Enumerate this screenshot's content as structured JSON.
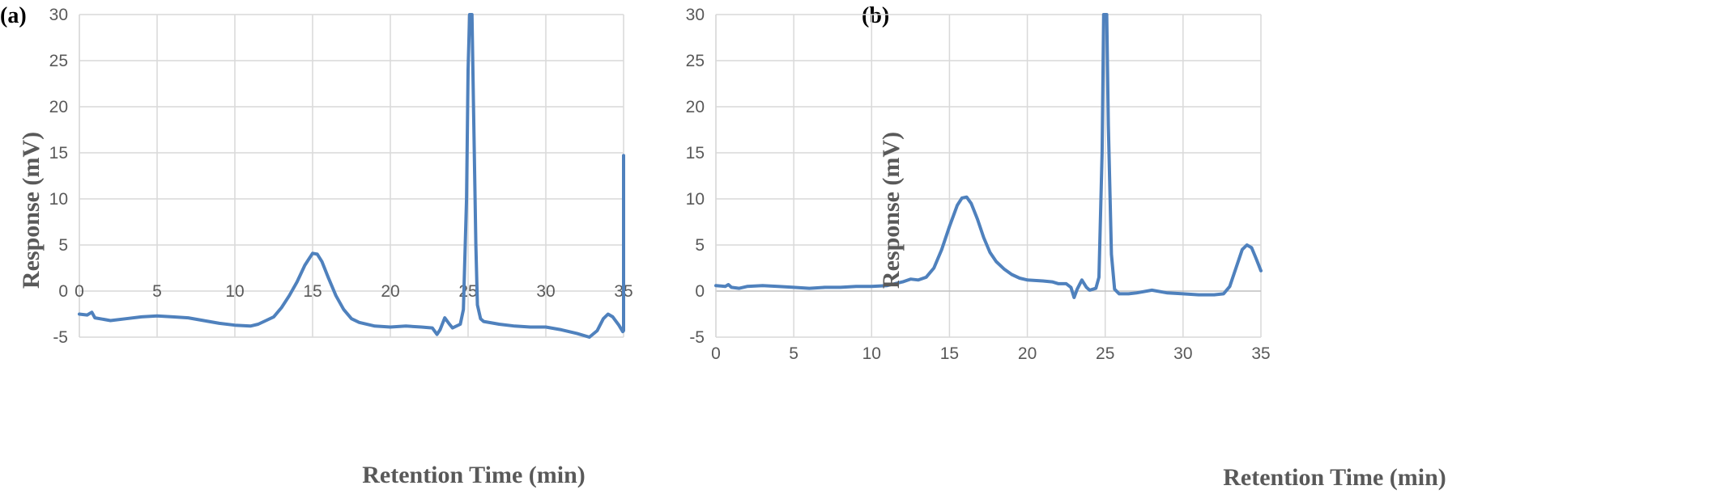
{
  "colors": {
    "series": "#4f81bd",
    "grid": "#d9d9d9",
    "axis": "#bfbfbf",
    "text": "#595959"
  },
  "chart_data": [
    {
      "type": "line",
      "panel_label": "(a)",
      "xlabel": "Retention Time (min)",
      "ylabel": "Response (mV)",
      "xlim": [
        0,
        35
      ],
      "ylim": [
        -5,
        30
      ],
      "xticks": [
        0,
        5,
        10,
        15,
        20,
        25,
        30,
        35
      ],
      "yticks": [
        -5,
        0,
        5,
        10,
        15,
        20,
        25,
        30
      ],
      "grid": true,
      "series": [
        {
          "points": [
            [
              0,
              -2.5
            ],
            [
              0.5,
              -2.6
            ],
            [
              0.8,
              -2.3
            ],
            [
              1,
              -2.9
            ],
            [
              2,
              -3.2
            ],
            [
              3,
              -3.0
            ],
            [
              4,
              -2.8
            ],
            [
              5,
              -2.7
            ],
            [
              6,
              -2.8
            ],
            [
              7,
              -2.9
            ],
            [
              8,
              -3.2
            ],
            [
              9,
              -3.5
            ],
            [
              10,
              -3.7
            ],
            [
              11,
              -3.8
            ],
            [
              11.5,
              -3.6
            ],
            [
              12,
              -3.2
            ],
            [
              12.5,
              -2.8
            ],
            [
              13,
              -1.8
            ],
            [
              13.5,
              -0.5
            ],
            [
              14,
              1.0
            ],
            [
              14.5,
              2.8
            ],
            [
              15,
              4.1
            ],
            [
              15.3,
              4.0
            ],
            [
              15.6,
              3.2
            ],
            [
              16,
              1.5
            ],
            [
              16.5,
              -0.5
            ],
            [
              17,
              -2.0
            ],
            [
              17.5,
              -3.0
            ],
            [
              18,
              -3.4
            ],
            [
              19,
              -3.8
            ],
            [
              20,
              -3.9
            ],
            [
              21,
              -3.8
            ],
            [
              22,
              -3.9
            ],
            [
              22.7,
              -4.0
            ],
            [
              23,
              -4.7
            ],
            [
              23.2,
              -4.2
            ],
            [
              23.5,
              -2.9
            ],
            [
              23.8,
              -3.6
            ],
            [
              24,
              -4.0
            ],
            [
              24.5,
              -3.6
            ],
            [
              24.7,
              -2.0
            ],
            [
              24.9,
              10
            ],
            [
              25.0,
              24
            ],
            [
              25.1,
              30
            ],
            [
              25.25,
              30
            ],
            [
              25.35,
              20
            ],
            [
              25.5,
              5
            ],
            [
              25.6,
              -1.5
            ],
            [
              25.8,
              -3.0
            ],
            [
              26,
              -3.3
            ],
            [
              27,
              -3.6
            ],
            [
              28,
              -3.8
            ],
            [
              29,
              -3.9
            ],
            [
              30,
              -3.9
            ],
            [
              31,
              -4.2
            ],
            [
              32,
              -4.6
            ],
            [
              32.8,
              -5.0
            ],
            [
              33.3,
              -4.3
            ],
            [
              33.7,
              -3.0
            ],
            [
              34,
              -2.5
            ],
            [
              34.3,
              -2.8
            ],
            [
              34.7,
              -3.7
            ],
            [
              34.95,
              -4.4
            ],
            [
              35,
              -4.3
            ],
            [
              35,
              14.7
            ]
          ]
        }
      ]
    },
    {
      "type": "line",
      "panel_label": "(b)",
      "xlabel": "Retention Time (min)",
      "ylabel": "Response (mV)",
      "xlim": [
        0,
        35
      ],
      "ylim": [
        -5,
        30
      ],
      "xticks": [
        0,
        5,
        10,
        15,
        20,
        25,
        30,
        35
      ],
      "yticks": [
        -5,
        0,
        5,
        10,
        15,
        20,
        25,
        30
      ],
      "grid": true,
      "series": [
        {
          "points": [
            [
              0,
              0.6
            ],
            [
              0.6,
              0.5
            ],
            [
              0.8,
              0.7
            ],
            [
              1,
              0.4
            ],
            [
              1.5,
              0.3
            ],
            [
              2,
              0.5
            ],
            [
              3,
              0.6
            ],
            [
              4,
              0.5
            ],
            [
              5,
              0.4
            ],
            [
              6,
              0.3
            ],
            [
              7,
              0.4
            ],
            [
              8,
              0.4
            ],
            [
              9,
              0.5
            ],
            [
              10,
              0.5
            ],
            [
              11,
              0.6
            ],
            [
              12,
              1.0
            ],
            [
              12.5,
              1.3
            ],
            [
              13,
              1.2
            ],
            [
              13.5,
              1.5
            ],
            [
              14,
              2.5
            ],
            [
              14.5,
              4.5
            ],
            [
              15,
              7.0
            ],
            [
              15.5,
              9.3
            ],
            [
              15.8,
              10.1
            ],
            [
              16.1,
              10.2
            ],
            [
              16.4,
              9.5
            ],
            [
              16.8,
              7.8
            ],
            [
              17.2,
              5.8
            ],
            [
              17.6,
              4.2
            ],
            [
              18,
              3.2
            ],
            [
              18.5,
              2.4
            ],
            [
              19,
              1.8
            ],
            [
              19.5,
              1.4
            ],
            [
              20,
              1.2
            ],
            [
              21,
              1.1
            ],
            [
              21.6,
              1.0
            ],
            [
              22,
              0.8
            ],
            [
              22.5,
              0.8
            ],
            [
              22.8,
              0.4
            ],
            [
              23.0,
              -0.7
            ],
            [
              23.2,
              0.2
            ],
            [
              23.5,
              1.2
            ],
            [
              23.8,
              0.4
            ],
            [
              24.0,
              0.1
            ],
            [
              24.4,
              0.3
            ],
            [
              24.6,
              1.5
            ],
            [
              24.8,
              15
            ],
            [
              24.9,
              30
            ],
            [
              25.1,
              30
            ],
            [
              25.2,
              18
            ],
            [
              25.4,
              4
            ],
            [
              25.6,
              0.2
            ],
            [
              25.9,
              -0.3
            ],
            [
              26.5,
              -0.3
            ],
            [
              27,
              -0.2
            ],
            [
              28,
              0.1
            ],
            [
              29,
              -0.2
            ],
            [
              30,
              -0.3
            ],
            [
              31,
              -0.4
            ],
            [
              32,
              -0.4
            ],
            [
              32.6,
              -0.3
            ],
            [
              33,
              0.5
            ],
            [
              33.4,
              2.5
            ],
            [
              33.8,
              4.5
            ],
            [
              34.1,
              5.0
            ],
            [
              34.4,
              4.7
            ],
            [
              34.7,
              3.5
            ],
            [
              35,
              2.2
            ]
          ]
        }
      ]
    }
  ]
}
